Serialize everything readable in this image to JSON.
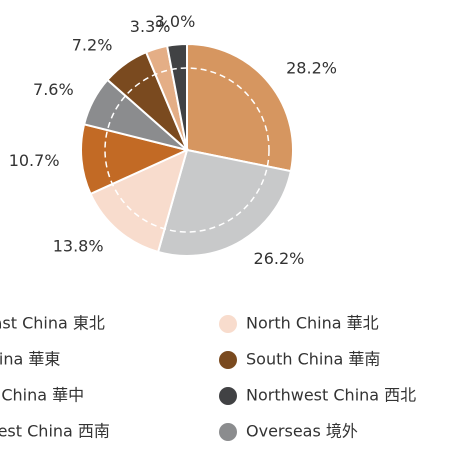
{
  "chart_data": {
    "type": "pie",
    "categories": [
      "Northeast China 東北",
      "East China 華東",
      "North China 華北",
      "Central China 華中",
      "Overseas 境外",
      "South China 華南",
      "Southwest China 西南",
      "Northwest China 西北"
    ],
    "values": [
      28.2,
      26.2,
      13.8,
      10.7,
      7.6,
      7.2,
      3.3,
      3.0
    ],
    "value_labels": [
      "28.2%",
      "26.2%",
      "13.8%",
      "10.7%",
      "7.6%",
      "7.2%",
      "3.3%",
      "3.0%"
    ],
    "colors": [
      "#d69660",
      "#c8c9ca",
      "#f8dccd",
      "#c26a25",
      "#8b8c8e",
      "#7a4a1f",
      "#e4ae86",
      "#414244"
    ]
  }
}
